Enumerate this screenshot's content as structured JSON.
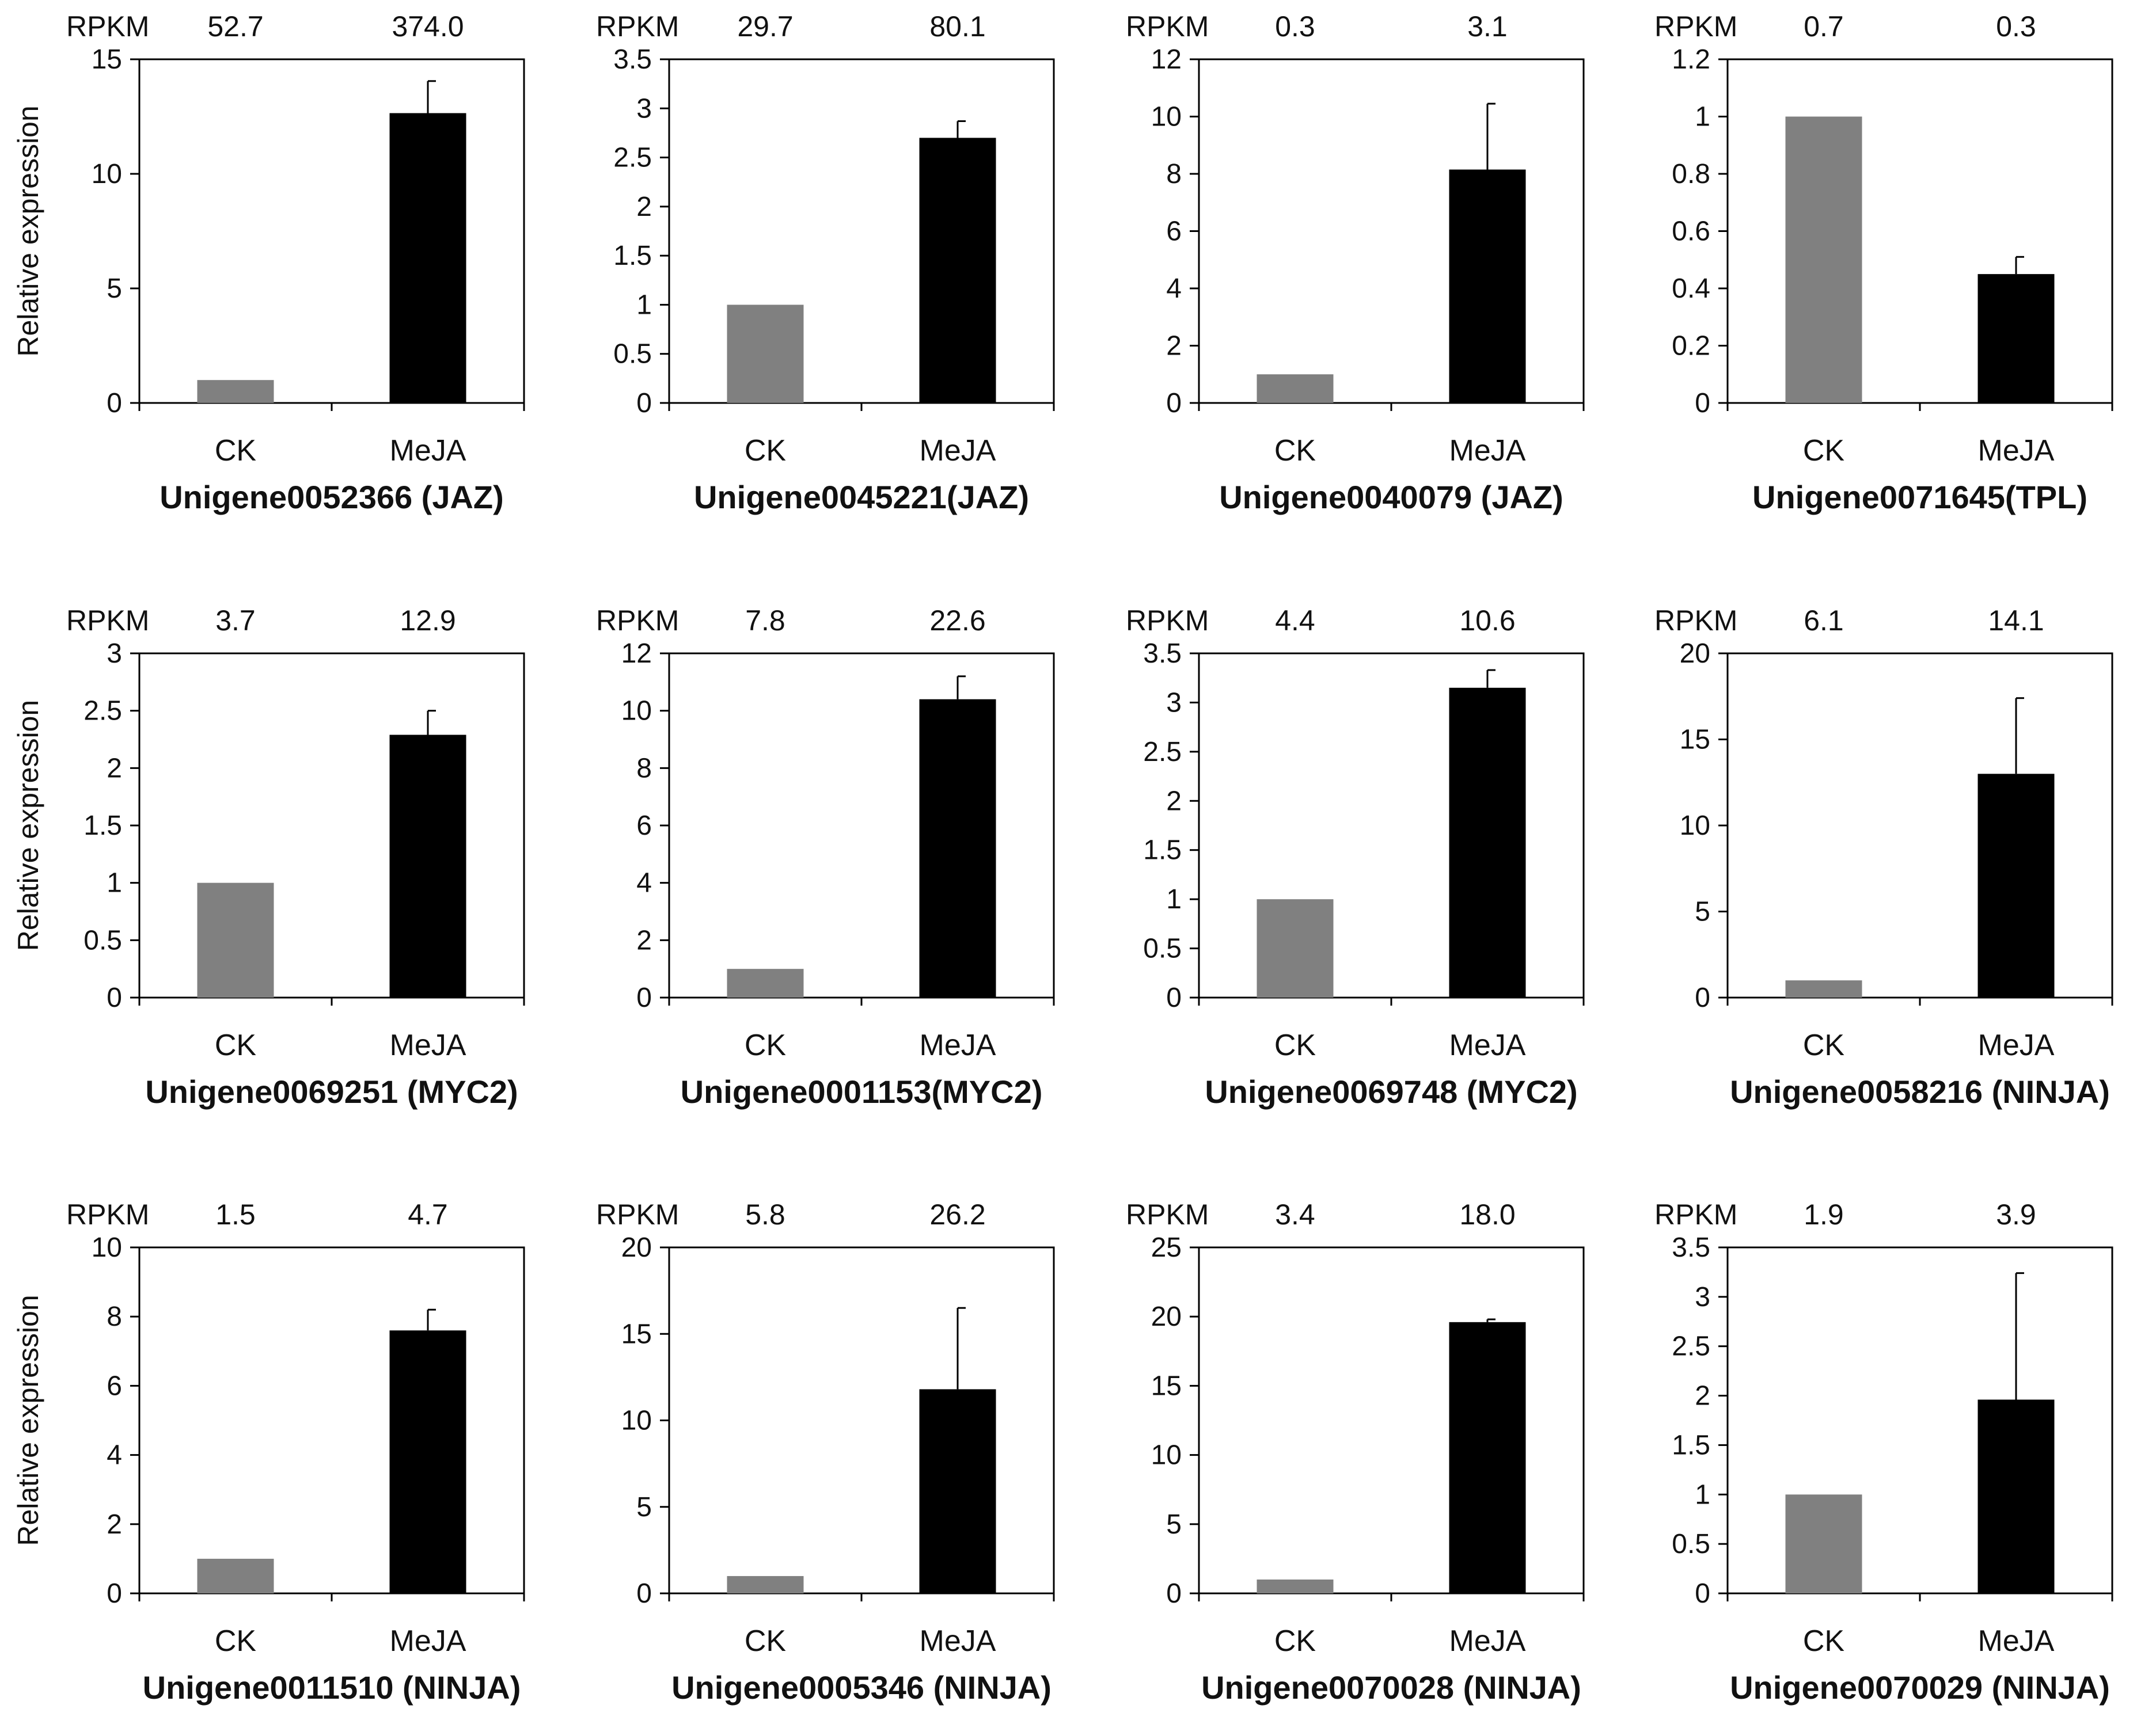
{
  "figure": {
    "colors": {
      "ck": "#808080",
      "meja": "#000000",
      "axis": "#000000",
      "text": "#111111"
    },
    "rpkm_label": "RPKM",
    "ylabel": "Relative expression"
  },
  "chart_data": [
    {
      "type": "bar",
      "title": "Unigene0052366 (JAZ)",
      "categories": [
        "CK",
        "MeJA"
      ],
      "values": [
        1.0,
        12.65
      ],
      "error": [
        0,
        1.4
      ],
      "rpkm": [
        "52.7",
        "374.0"
      ],
      "ylim": [
        0,
        15
      ],
      "yticks": [
        "0",
        "5",
        "10",
        "15"
      ],
      "ylabel": "Relative expression"
    },
    {
      "type": "bar",
      "title": "Unigene0045221(JAZ)",
      "categories": [
        "CK",
        "MeJA"
      ],
      "values": [
        1.0,
        2.7
      ],
      "error": [
        0,
        0.17
      ],
      "rpkm": [
        "29.7",
        "80.1"
      ],
      "ylim": [
        0,
        3.5
      ],
      "yticks": [
        "0",
        "0.5",
        "1",
        "1.5",
        "2",
        "2.5",
        "3",
        "3.5"
      ],
      "ylabel": ""
    },
    {
      "type": "bar",
      "title": "Unigene0040079 (JAZ)",
      "categories": [
        "CK",
        "MeJA"
      ],
      "values": [
        1.0,
        8.15
      ],
      "error": [
        0,
        2.3
      ],
      "rpkm": [
        "0.3",
        "3.1"
      ],
      "ylim": [
        0,
        12
      ],
      "yticks": [
        "0",
        "2",
        "4",
        "6",
        "8",
        "10",
        "12"
      ],
      "ylabel": ""
    },
    {
      "type": "bar",
      "title": "Unigene0071645(TPL)",
      "categories": [
        "CK",
        "MeJA"
      ],
      "values": [
        1.0,
        0.45
      ],
      "error": [
        0,
        0.06
      ],
      "rpkm": [
        "0.7",
        "0.3"
      ],
      "ylim": [
        0,
        1.2
      ],
      "yticks": [
        "0",
        "0.2",
        "0.4",
        "0.6",
        "0.8",
        "1",
        "1.2"
      ],
      "ylabel": ""
    },
    {
      "type": "bar",
      "title": "Unigene0069251 (MYC2)",
      "categories": [
        "CK",
        "MeJA"
      ],
      "values": [
        1.0,
        2.29
      ],
      "error": [
        0,
        0.21
      ],
      "rpkm": [
        "3.7",
        "12.9"
      ],
      "ylim": [
        0,
        3
      ],
      "yticks": [
        "0",
        "0.5",
        "1",
        "1.5",
        "2",
        "2.5",
        "3"
      ],
      "ylabel": "Relative expression"
    },
    {
      "type": "bar",
      "title": "Unigene0001153(MYC2)",
      "categories": [
        "CK",
        "MeJA"
      ],
      "values": [
        1.0,
        10.4
      ],
      "error": [
        0,
        0.8
      ],
      "rpkm": [
        "7.8",
        "22.6"
      ],
      "ylim": [
        0,
        12
      ],
      "yticks": [
        "0",
        "2",
        "4",
        "6",
        "8",
        "10",
        "12"
      ],
      "ylabel": ""
    },
    {
      "type": "bar",
      "title": "Unigene0069748 (MYC2)",
      "categories": [
        "CK",
        "MeJA"
      ],
      "values": [
        1.0,
        3.15
      ],
      "error": [
        0,
        0.18
      ],
      "rpkm": [
        "4.4",
        "10.6"
      ],
      "ylim": [
        0,
        3.5
      ],
      "yticks": [
        "0",
        "0.5",
        "1",
        "1.5",
        "2",
        "2.5",
        "3",
        "3.5"
      ],
      "ylabel": ""
    },
    {
      "type": "bar",
      "title": "Unigene0058216 (NINJA)",
      "categories": [
        "CK",
        "MeJA"
      ],
      "values": [
        1.0,
        13.0
      ],
      "error": [
        0,
        4.4
      ],
      "rpkm": [
        "6.1",
        "14.1"
      ],
      "ylim": [
        0,
        20
      ],
      "yticks": [
        "0",
        "5",
        "10",
        "15",
        "20"
      ],
      "ylabel": ""
    },
    {
      "type": "bar",
      "title": "Unigene0011510 (NINJA)",
      "categories": [
        "CK",
        "MeJA"
      ],
      "values": [
        1.0,
        7.6
      ],
      "error": [
        0,
        0.6
      ],
      "rpkm": [
        "1.5",
        "4.7"
      ],
      "ylim": [
        0,
        10
      ],
      "yticks": [
        "0",
        "2",
        "4",
        "6",
        "8",
        "10"
      ],
      "ylabel": "Relative expression"
    },
    {
      "type": "bar",
      "title": "Unigene0005346 (NINJA)",
      "categories": [
        "CK",
        "MeJA"
      ],
      "values": [
        1.0,
        11.8
      ],
      "error": [
        0,
        4.7
      ],
      "rpkm": [
        "5.8",
        "26.2"
      ],
      "ylim": [
        0,
        20
      ],
      "yticks": [
        "0",
        "5",
        "10",
        "15",
        "20"
      ],
      "ylabel": ""
    },
    {
      "type": "bar",
      "title": "Unigene0070028 (NINJA)",
      "categories": [
        "CK",
        "MeJA"
      ],
      "values": [
        1.0,
        19.6
      ],
      "error": [
        0,
        0.2
      ],
      "rpkm": [
        "3.4",
        "18.0"
      ],
      "ylim": [
        0,
        25
      ],
      "yticks": [
        "0",
        "5",
        "10",
        "15",
        "20",
        "25"
      ],
      "ylabel": ""
    },
    {
      "type": "bar",
      "title": "Unigene0070029 (NINJA)",
      "categories": [
        "CK",
        "MeJA"
      ],
      "values": [
        1.0,
        1.96
      ],
      "error": [
        0,
        1.28
      ],
      "rpkm": [
        "1.9",
        "3.9"
      ],
      "ylim": [
        0,
        3.5
      ],
      "yticks": [
        "0",
        "0.5",
        "1",
        "1.5",
        "2",
        "2.5",
        "3",
        "3.5"
      ],
      "ylabel": ""
    }
  ]
}
